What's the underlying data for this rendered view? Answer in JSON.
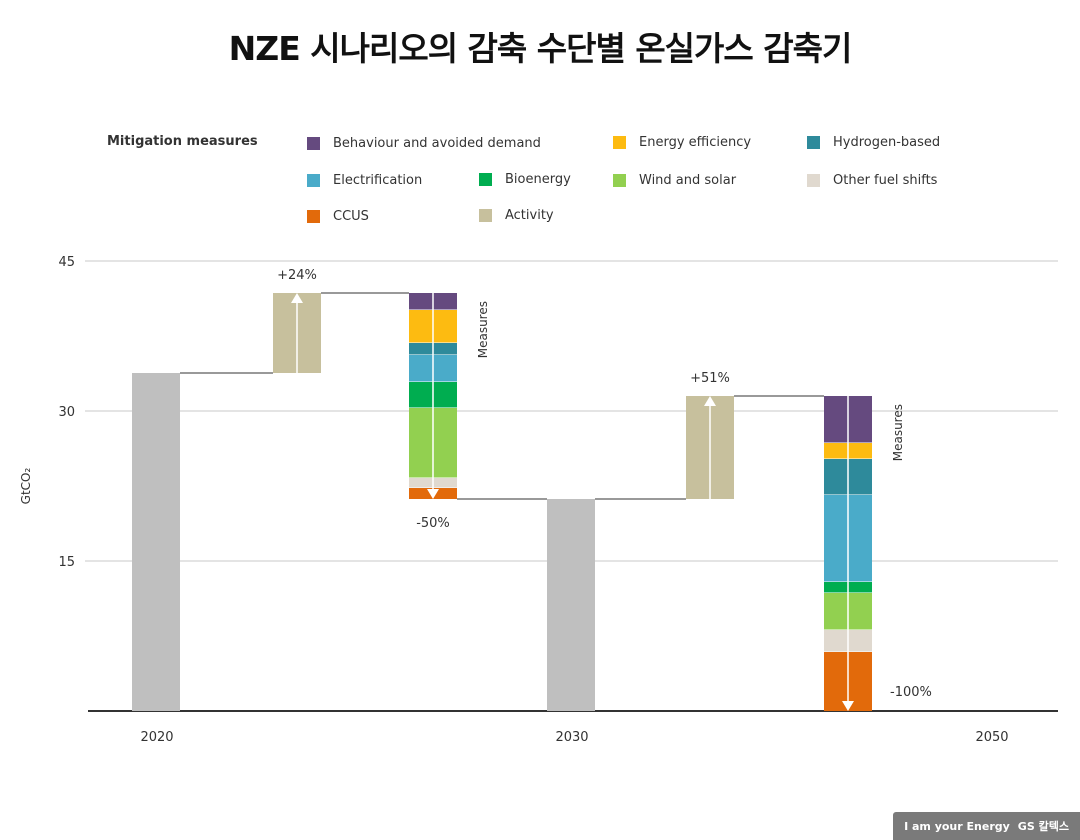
{
  "title": "NZE 시나리오의 감축 수단별 온실가스 감축기",
  "legend_title": "Mitigation measures",
  "logo": {
    "tagline": "I am your Energy",
    "brand": "GS 칼텍스"
  },
  "chart_data": {
    "type": "waterfall",
    "ylabel": "GtCO₂",
    "ylim": [
      0,
      45
    ],
    "yticks": [
      15,
      30,
      45
    ],
    "xticks": [
      "2020",
      "2030",
      "2050"
    ],
    "grid": true,
    "legend_position": "top",
    "legend": [
      {
        "key": "behaviour",
        "name": "Behaviour and avoided demand",
        "color": "#654a7f"
      },
      {
        "key": "efficiency",
        "name": "Energy efficiency",
        "color": "#fdbb11"
      },
      {
        "key": "hydrogen",
        "name": "Hydrogen-based",
        "color": "#2e8a9b"
      },
      {
        "key": "electrification",
        "name": "Electrification",
        "color": "#4aabc9"
      },
      {
        "key": "bioenergy",
        "name": "Bioenergy",
        "color": "#00ad50"
      },
      {
        "key": "wind_solar",
        "name": "Wind and solar",
        "color": "#92d050"
      },
      {
        "key": "other_fuel",
        "name": "Other fuel shifts",
        "color": "#e0d9cf"
      },
      {
        "key": "ccus",
        "name": "CCUS",
        "color": "#e26a0b"
      },
      {
        "key": "activity",
        "name": "Activity",
        "color": "#c7c09d"
      }
    ],
    "total_color": "#bfbfbf",
    "steps": [
      {
        "kind": "total",
        "label": "2020",
        "value": 33.8
      },
      {
        "kind": "activity",
        "change": 8.0,
        "annotation": "+24%"
      },
      {
        "kind": "measures",
        "label": "Measures",
        "annotation": "-50%",
        "segments": {
          "behaviour": 1.7,
          "efficiency": 3.3,
          "hydrogen": 1.2,
          "electrification": 2.7,
          "bioenergy": 2.6,
          "wind_solar": 7.0,
          "other_fuel": 1.0,
          "ccus": 1.1
        }
      },
      {
        "kind": "total",
        "label": "2030",
        "value": 21.2
      },
      {
        "kind": "activity",
        "change": 10.3,
        "annotation": "+51%"
      },
      {
        "kind": "measures",
        "label": "Measures",
        "annotation": "-100%",
        "segments": {
          "behaviour": 4.7,
          "efficiency": 1.6,
          "hydrogen": 3.6,
          "electrification": 8.7,
          "bioenergy": 1.1,
          "wind_solar": 3.7,
          "other_fuel": 2.2,
          "ccus": 5.9
        }
      }
    ]
  }
}
